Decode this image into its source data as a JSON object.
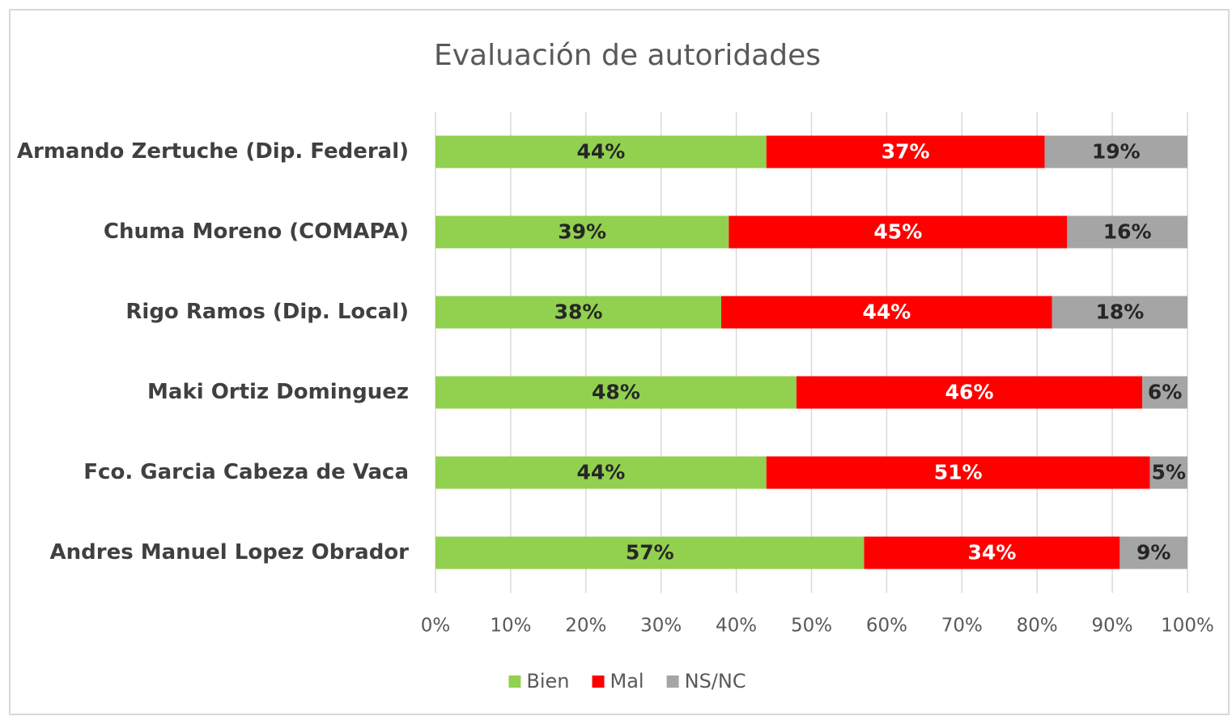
{
  "chart_data": {
    "type": "stacked_bar_horizontal",
    "title": "Evaluación de autoridades",
    "categories": [
      "Armando Zertuche (Dip. Federal)",
      "Chuma Moreno (COMAPA)",
      "Rigo Ramos (Dip. Local)",
      "Maki Ortiz Dominguez",
      "Fco. Garcia Cabeza de Vaca",
      "Andres Manuel Lopez Obrador"
    ],
    "series": [
      {
        "name": "Bien",
        "color": "#92d050",
        "values": [
          44,
          39,
          38,
          48,
          44,
          57
        ],
        "value_labels": [
          "44%",
          "39%",
          "38%",
          "48%",
          "44%",
          "57%"
        ]
      },
      {
        "name": "Mal",
        "color": "#ff0000",
        "values": [
          37,
          45,
          44,
          46,
          51,
          34
        ],
        "value_labels": [
          "37%",
          "45%",
          "44%",
          "46%",
          "51%",
          "34%"
        ]
      },
      {
        "name": "NS/NC",
        "color": "#a5a5a5",
        "values": [
          19,
          16,
          18,
          6,
          5,
          9
        ],
        "value_labels": [
          "19%",
          "16%",
          "18%",
          "6%",
          "5%",
          "9%"
        ]
      }
    ],
    "xlim": [
      0,
      100
    ],
    "xticks": [
      {
        "value": 0,
        "label": "0%"
      },
      {
        "value": 10,
        "label": "10%"
      },
      {
        "value": 20,
        "label": "20%"
      },
      {
        "value": 30,
        "label": "30%"
      },
      {
        "value": 40,
        "label": "40%"
      },
      {
        "value": 50,
        "label": "50%"
      },
      {
        "value": 60,
        "label": "60%"
      },
      {
        "value": 70,
        "label": "70%"
      },
      {
        "value": 80,
        "label": "80%"
      },
      {
        "value": 90,
        "label": "90%"
      },
      {
        "value": 100,
        "label": "100%"
      }
    ],
    "grid": true,
    "legend": "bottom"
  }
}
